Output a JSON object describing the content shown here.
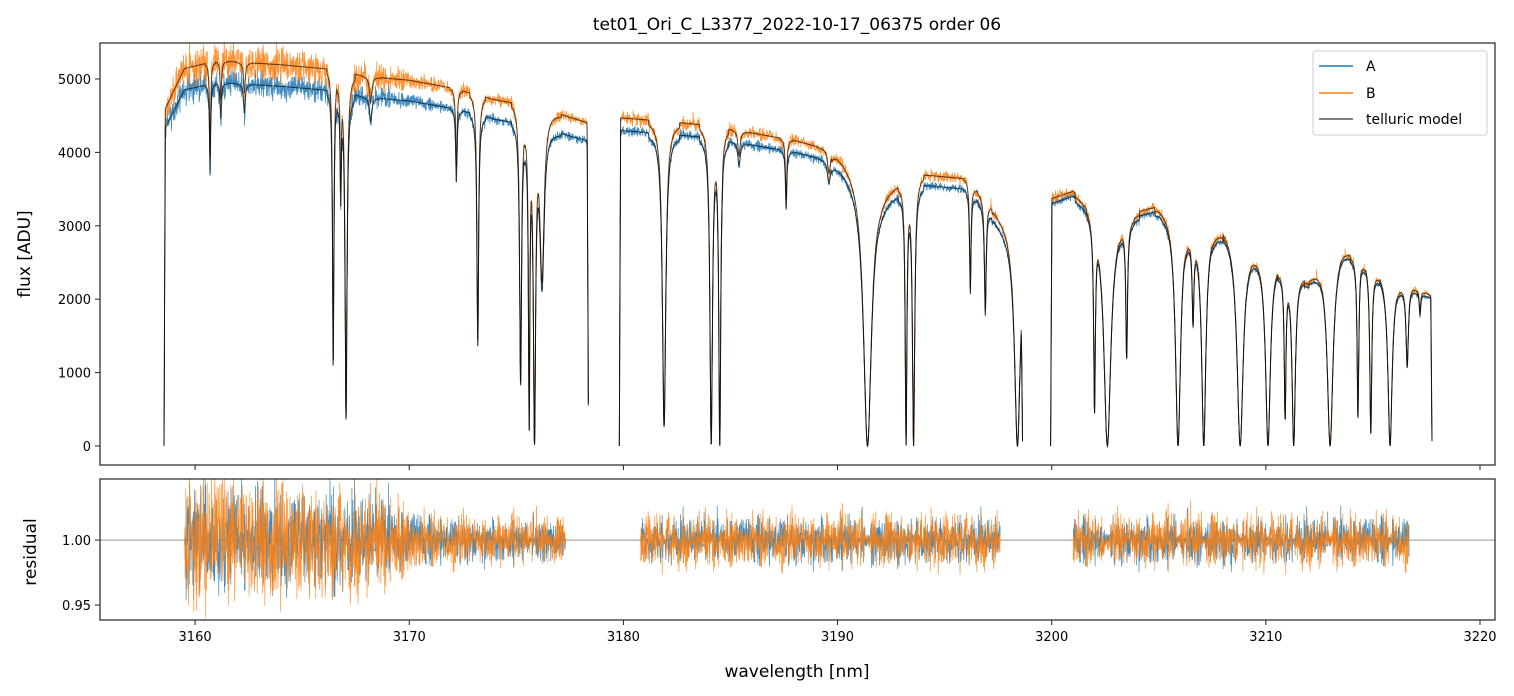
{
  "chart_data": {
    "type": "line",
    "title": "tet01_Ori_C_L3377_2022-10-17_06375  order 06",
    "panels": {
      "top": {
        "ylabel": "flux [ADU]",
        "ylim": [
          -259,
          5490
        ],
        "yticks": [
          0,
          1000,
          2000,
          3000,
          4000,
          5000
        ]
      },
      "bottom": {
        "xlabel": "wavelength [nm]",
        "ylabel": "residual",
        "ylim": [
          0.9385,
          1.047
        ],
        "yticks": [
          0.95,
          1.0
        ],
        "ytick_labels": [
          "0.95",
          "1.00"
        ],
        "reference_line": 1.0
      }
    },
    "xlim": [
      3155.56,
      3220.7
    ],
    "xticks": [
      3160,
      3170,
      3180,
      3190,
      3200,
      3210,
      3220
    ],
    "legend": {
      "placement": "top-right",
      "entries": [
        {
          "label": "A",
          "color": "#1f77b4"
        },
        {
          "label": "B",
          "color": "#ff7f0e"
        },
        {
          "label": "telluric model",
          "color": "#555555"
        }
      ]
    },
    "segments": [
      {
        "range": [
          3158.55,
          3178.37
        ],
        "residual_range": [
          3159.5,
          3177.3
        ],
        "b_scale": 1.06,
        "continuum_A": [
          [
            3158.55,
            4300
          ],
          [
            3159.5,
            4850
          ],
          [
            3161,
            4950
          ],
          [
            3164,
            4900
          ],
          [
            3166,
            4850
          ],
          [
            3168,
            4750
          ],
          [
            3170,
            4700
          ],
          [
            3172,
            4600
          ],
          [
            3174,
            4450
          ],
          [
            3176,
            4350
          ],
          [
            3178.37,
            4150
          ]
        ]
      },
      {
        "range": [
          3179.81,
          3198.64
        ],
        "residual_range": [
          3180.8,
          3197.6
        ],
        "b_scale": 1.04,
        "continuum_A": [
          [
            3179.81,
            4300
          ],
          [
            3182,
            4250
          ],
          [
            3184,
            4200
          ],
          [
            3186,
            4100
          ],
          [
            3188,
            4000
          ],
          [
            3190,
            3850
          ],
          [
            3192,
            3400
          ],
          [
            3194,
            3550
          ],
          [
            3196,
            3500
          ],
          [
            3198.64,
            2700
          ]
        ]
      },
      {
        "range": [
          3199.95,
          3217.76
        ],
        "residual_range": [
          3201.0,
          3216.7
        ],
        "b_scale": 1.02,
        "continuum_A": [
          [
            3199.95,
            3300
          ],
          [
            3201,
            3400
          ],
          [
            3203,
            3050
          ],
          [
            3205,
            3200
          ],
          [
            3207,
            2900
          ],
          [
            3208,
            2950
          ],
          [
            3210,
            2600
          ],
          [
            3212,
            2250
          ],
          [
            3213.5,
            2700
          ],
          [
            3215,
            2400
          ],
          [
            3217.76,
            2000
          ]
        ]
      }
    ],
    "absorption_lines": [
      [
        3160.7,
        0.25,
        0.04
      ],
      [
        3161.2,
        0.1,
        0.05
      ],
      [
        3162.3,
        0.08,
        0.06
      ],
      [
        3166.45,
        0.78,
        0.05
      ],
      [
        3166.8,
        0.3,
        0.04
      ],
      [
        3167.05,
        0.93,
        0.07
      ],
      [
        3168.2,
        0.07,
        0.08
      ],
      [
        3172.2,
        0.22,
        0.05
      ],
      [
        3173.2,
        0.7,
        0.06
      ],
      [
        3175.2,
        0.82,
        0.07
      ],
      [
        3175.6,
        0.95,
        0.05
      ],
      [
        3175.85,
        1.03,
        0.08
      ],
      [
        3176.2,
        0.5,
        0.15
      ],
      [
        3181.9,
        0.94,
        0.12
      ],
      [
        3184.1,
        1.0,
        0.09
      ],
      [
        3184.5,
        1.0,
        0.07
      ],
      [
        3185.4,
        0.08,
        0.08
      ],
      [
        3187.6,
        0.2,
        0.05
      ],
      [
        3189.6,
        0.08,
        0.1
      ],
      [
        3191.4,
        1.0,
        0.28
      ],
      [
        3193.2,
        1.0,
        0.06
      ],
      [
        3193.55,
        1.0,
        0.08
      ],
      [
        3196.2,
        0.4,
        0.05
      ],
      [
        3196.9,
        0.45,
        0.06
      ],
      [
        3198.4,
        1.0,
        0.2
      ],
      [
        3202.0,
        0.85,
        0.06
      ],
      [
        3202.6,
        1.0,
        0.25
      ],
      [
        3203.5,
        0.6,
        0.06
      ],
      [
        3205.9,
        1.0,
        0.18
      ],
      [
        3206.6,
        0.4,
        0.06
      ],
      [
        3207.1,
        1.0,
        0.15
      ],
      [
        3208.8,
        1.0,
        0.22
      ],
      [
        3210.1,
        1.0,
        0.17
      ],
      [
        3210.9,
        0.85,
        0.06
      ],
      [
        3211.3,
        1.0,
        0.12
      ],
      [
        3213.0,
        1.0,
        0.2
      ],
      [
        3214.3,
        0.85,
        0.06
      ],
      [
        3214.9,
        0.93,
        0.07
      ],
      [
        3215.8,
        1.0,
        0.15
      ],
      [
        3216.6,
        0.5,
        0.08
      ],
      [
        3217.2,
        0.15,
        0.05
      ]
    ],
    "residual_noise": [
      [
        3159.5,
        0.035
      ],
      [
        3168,
        0.03
      ],
      [
        3171,
        0.015
      ],
      [
        3178,
        0.012
      ],
      [
        3180,
        0.015
      ],
      [
        3200,
        0.015
      ],
      [
        3217,
        0.015
      ]
    ]
  }
}
